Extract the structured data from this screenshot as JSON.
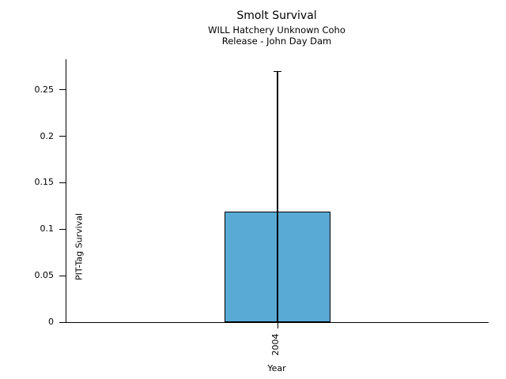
{
  "figure": {
    "background": "#ffffff"
  },
  "chart_data": {
    "type": "bar",
    "title": "Smolt Survival",
    "subtitle_line1": "WILL Hatchery Unknown Coho",
    "subtitle_line2": "Release - John Day Dam",
    "xlabel": "Year",
    "ylabel": "PIT-Tag Survival",
    "categories": [
      "2004"
    ],
    "values": [
      0.119
    ],
    "error_upper": [
      0.27
    ],
    "error_lower": [
      0
    ],
    "yticks": [
      0,
      0.05,
      0.1,
      0.15,
      0.2,
      0.25
    ],
    "ytick_labels": [
      "0",
      "0.05",
      "0.1",
      "0.15",
      "0.2",
      "0.25"
    ],
    "ylim": [
      0,
      0.283
    ],
    "grid": false,
    "legend": "none",
    "bar_color": "#5AAAD6",
    "bar_edge_color": "#000000",
    "axis_color": "#000000",
    "text_color": "#000000"
  }
}
